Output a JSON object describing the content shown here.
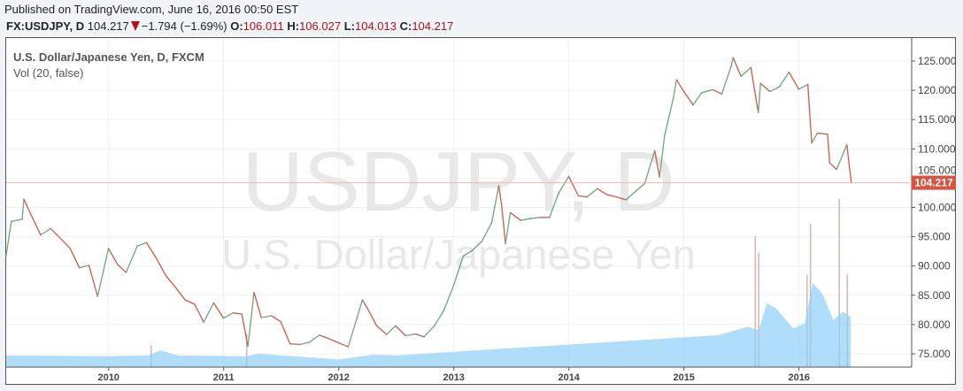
{
  "header": {
    "published": "Published on TradingView.com, June 16, 2016 00:50 EST",
    "symbol": "FX:USDJPY, D",
    "last": "104.217",
    "change": "−1.794 (−1.69%)",
    "open_label": "O:",
    "open": "106.011",
    "high_label": "H:",
    "high": "106.027",
    "low_label": "L:",
    "low": "104.013",
    "close_label": "C:",
    "close": "104.217",
    "direction_icon": "triangle-down-icon"
  },
  "legend": {
    "title": "U.S. Dollar/Japanese Yen, D, FXCM",
    "indicator": "Vol (20, false)"
  },
  "watermark": {
    "symbol": "USDJPY, D",
    "name": "U.S. Dollar/Japanese Yen"
  },
  "colors": {
    "up": "#6ba583",
    "down": "#d75442",
    "volume_ma": "#8ecff7",
    "last_price": "#d75442"
  },
  "chart_data": {
    "type": "line",
    "title": "",
    "xlabel": "",
    "ylabel": "",
    "xlim": [
      2009.11,
      2016.45
    ],
    "ylim": [
      72.5,
      128
    ],
    "grid": true,
    "x_ticks": [
      "2010",
      "2011",
      "2012",
      "2013",
      "2014",
      "2015",
      "2016"
    ],
    "y_ticks": [
      "75.000",
      "80.000",
      "85.000",
      "90.000",
      "95.000",
      "100.000",
      "105.000",
      "110.000",
      "115.000",
      "120.000",
      "125.000"
    ],
    "last_price_label": "104.217",
    "last_price": 104.217,
    "price": [
      [
        "2009-02-10",
        91.6
      ],
      [
        "2009-02-27",
        97.6
      ],
      [
        "2009-03-31",
        98.0
      ],
      [
        "2009-04-06",
        101.4
      ],
      [
        "2009-04-30",
        98.6
      ],
      [
        "2009-05-29",
        95.3
      ],
      [
        "2009-06-30",
        96.4
      ],
      [
        "2009-07-31",
        94.7
      ],
      [
        "2009-08-31",
        93.0
      ],
      [
        "2009-09-30",
        89.7
      ],
      [
        "2009-10-30",
        90.1
      ],
      [
        "2009-11-27",
        84.8
      ],
      [
        "2009-12-31",
        93.0
      ],
      [
        "2010-01-29",
        90.3
      ],
      [
        "2010-02-26",
        88.9
      ],
      [
        "2010-03-31",
        93.4
      ],
      [
        "2010-04-30",
        94.0
      ],
      [
        "2010-05-31",
        91.3
      ],
      [
        "2010-06-30",
        88.4
      ],
      [
        "2010-07-30",
        86.4
      ],
      [
        "2010-08-31",
        84.2
      ],
      [
        "2010-09-30",
        83.5
      ],
      [
        "2010-10-29",
        80.4
      ],
      [
        "2010-11-30",
        83.7
      ],
      [
        "2010-12-31",
        81.1
      ],
      [
        "2011-01-31",
        82.0
      ],
      [
        "2011-02-28",
        81.8
      ],
      [
        "2011-03-17",
        76.3
      ],
      [
        "2011-03-31",
        82.8
      ],
      [
        "2011-04-06",
        85.5
      ],
      [
        "2011-04-29",
        81.2
      ],
      [
        "2011-05-31",
        81.5
      ],
      [
        "2011-06-30",
        80.5
      ],
      [
        "2011-07-29",
        76.7
      ],
      [
        "2011-08-31",
        76.6
      ],
      [
        "2011-09-30",
        77.0
      ],
      [
        "2011-10-31",
        78.2
      ],
      [
        "2011-11-30",
        77.6
      ],
      [
        "2011-12-30",
        76.9
      ],
      [
        "2012-01-31",
        76.2
      ],
      [
        "2012-02-29",
        81.2
      ],
      [
        "2012-03-15",
        84.2
      ],
      [
        "2012-03-30",
        82.9
      ],
      [
        "2012-04-30",
        79.8
      ],
      [
        "2012-05-31",
        78.3
      ],
      [
        "2012-06-29",
        79.8
      ],
      [
        "2012-07-31",
        78.1
      ],
      [
        "2012-08-31",
        78.4
      ],
      [
        "2012-09-28",
        77.9
      ],
      [
        "2012-10-31",
        79.8
      ],
      [
        "2012-11-30",
        82.4
      ],
      [
        "2012-12-31",
        86.7
      ],
      [
        "2013-01-31",
        91.7
      ],
      [
        "2013-02-28",
        92.6
      ],
      [
        "2013-03-29",
        94.2
      ],
      [
        "2013-04-30",
        97.4
      ],
      [
        "2013-05-22",
        103.7
      ],
      [
        "2013-05-31",
        100.4
      ],
      [
        "2013-06-13",
        93.8
      ],
      [
        "2013-06-28",
        99.1
      ],
      [
        "2013-07-31",
        97.8
      ],
      [
        "2013-08-30",
        98.1
      ],
      [
        "2013-09-30",
        98.3
      ],
      [
        "2013-10-31",
        98.3
      ],
      [
        "2013-11-29",
        102.4
      ],
      [
        "2013-12-31",
        105.3
      ],
      [
        "2014-01-31",
        102.0
      ],
      [
        "2014-02-28",
        101.8
      ],
      [
        "2014-03-31",
        103.2
      ],
      [
        "2014-04-30",
        102.2
      ],
      [
        "2014-05-30",
        101.8
      ],
      [
        "2014-06-30",
        101.3
      ],
      [
        "2014-07-31",
        102.8
      ],
      [
        "2014-08-29",
        104.1
      ],
      [
        "2014-09-30",
        109.7
      ],
      [
        "2014-10-15",
        105.2
      ],
      [
        "2014-10-31",
        112.3
      ],
      [
        "2014-11-28",
        118.6
      ],
      [
        "2014-12-08",
        121.8
      ],
      [
        "2014-12-31",
        119.8
      ],
      [
        "2015-01-30",
        117.5
      ],
      [
        "2015-02-27",
        119.6
      ],
      [
        "2015-03-31",
        120.1
      ],
      [
        "2015-04-30",
        119.4
      ],
      [
        "2015-05-29",
        124.1
      ],
      [
        "2015-06-05",
        125.6
      ],
      [
        "2015-06-30",
        122.4
      ],
      [
        "2015-07-31",
        123.9
      ],
      [
        "2015-08-24",
        116.2
      ],
      [
        "2015-08-31",
        121.2
      ],
      [
        "2015-09-30",
        119.8
      ],
      [
        "2015-10-30",
        120.6
      ],
      [
        "2015-11-30",
        123.1
      ],
      [
        "2015-12-31",
        120.2
      ],
      [
        "2016-01-29",
        121.0
      ],
      [
        "2016-02-11",
        111.0
      ],
      [
        "2016-02-29",
        112.7
      ],
      [
        "2016-03-31",
        112.5
      ],
      [
        "2016-04-07",
        107.6
      ],
      [
        "2016-04-29",
        106.5
      ],
      [
        "2016-05-31",
        110.7
      ],
      [
        "2016-06-15",
        104.2
      ]
    ],
    "volume_ma_relative": [
      [
        2009.11,
        0.07
      ],
      [
        2010.0,
        0.065
      ],
      [
        2010.35,
        0.07
      ],
      [
        2010.45,
        0.1
      ],
      [
        2010.6,
        0.07
      ],
      [
        2011.2,
        0.065
      ],
      [
        2011.3,
        0.08
      ],
      [
        2011.8,
        0.055
      ],
      [
        2012.0,
        0.045
      ],
      [
        2012.3,
        0.075
      ],
      [
        2012.5,
        0.07
      ],
      [
        2015.3,
        0.19
      ],
      [
        2015.4,
        0.21
      ],
      [
        2015.55,
        0.24
      ],
      [
        2015.65,
        0.22
      ],
      [
        2015.72,
        0.38
      ],
      [
        2015.8,
        0.35
      ],
      [
        2015.95,
        0.23
      ],
      [
        2016.05,
        0.26
      ],
      [
        2016.12,
        0.5
      ],
      [
        2016.2,
        0.44
      ],
      [
        2016.3,
        0.28
      ],
      [
        2016.38,
        0.33
      ],
      [
        2016.45,
        0.3
      ]
    ],
    "volume_spikes_relative": [
      [
        2010.37,
        0.13
      ],
      [
        2011.2,
        0.2
      ],
      [
        2015.62,
        0.78
      ],
      [
        2015.65,
        0.68
      ],
      [
        2016.07,
        0.55
      ],
      [
        2016.1,
        0.85
      ],
      [
        2016.35,
        1.0
      ],
      [
        2016.42,
        0.55
      ]
    ]
  }
}
